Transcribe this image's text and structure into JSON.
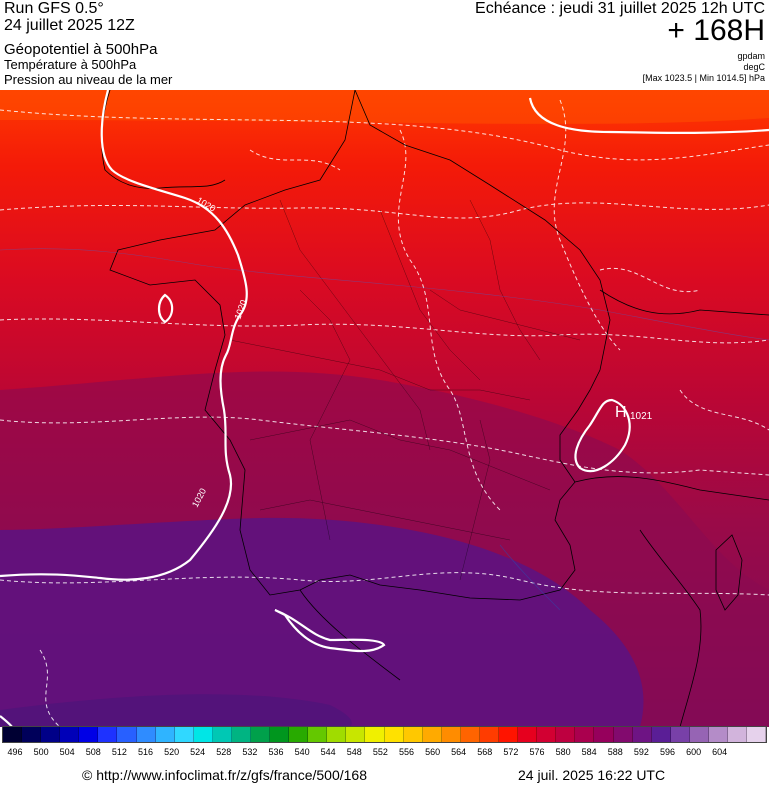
{
  "header": {
    "run": "Run GFS 0.5°",
    "run_date": "24 juillet 2025 12Z",
    "field_geopotential": "Géopotentiel à 500hPa",
    "field_temperature": "Température à 500hPa",
    "field_pressure": "Pression au niveau de la mer",
    "echeance": "Echéance : jeudi 31 juillet 2025 12h UTC",
    "forecast_hour": "+ 168H",
    "unit_geopotential": "gpdam",
    "unit_temperature": "degC",
    "pressure_range": "[Max 1023.5 | Min 1014.5] hPa"
  },
  "map": {
    "isobar_labels": [
      "1020",
      "1020",
      "1020"
    ],
    "high_marker": "H",
    "high_value": "1021",
    "colors": {
      "isobar": "#ffffff",
      "border": "#000000",
      "band_580": "#e6001a",
      "band_584": "#c40032",
      "band_588": "#a0003c",
      "band_592": "#7a0f62",
      "band_596": "#5a1488"
    }
  },
  "legend": {
    "labels": [
      "496",
      "500",
      "504",
      "508",
      "512",
      "516",
      "520",
      "524",
      "528",
      "532",
      "536",
      "540",
      "544",
      "548",
      "552",
      "556",
      "560",
      "564",
      "568",
      "572",
      "576",
      "580",
      "584",
      "588",
      "592",
      "596",
      "600",
      "604"
    ],
    "colors": [
      "#000033",
      "#00005a",
      "#000088",
      "#0000b8",
      "#0000e6",
      "#1e32ff",
      "#2860ff",
      "#2f8cff",
      "#2fb4ff",
      "#30d8ff",
      "#00e6e6",
      "#00c8b4",
      "#00b482",
      "#00a04b",
      "#00961e",
      "#28aa00",
      "#64c800",
      "#a0dc00",
      "#c8e600",
      "#f0f000",
      "#ffe100",
      "#ffc800",
      "#ffaa00",
      "#ff8c00",
      "#ff6400",
      "#ff3c00",
      "#ff1400",
      "#e6001e",
      "#d20032",
      "#be0040",
      "#aa004e",
      "#96005c",
      "#820a6e",
      "#6e1484",
      "#5a1e96",
      "#7840a8",
      "#9664b4",
      "#b48cc8",
      "#d2b4dc",
      "#e6d2ec"
    ]
  },
  "footer": {
    "url": "© http://www.infoclimat.fr/z/gfs/france/500/168",
    "generated": "24 juil. 2025 16:22 UTC"
  }
}
